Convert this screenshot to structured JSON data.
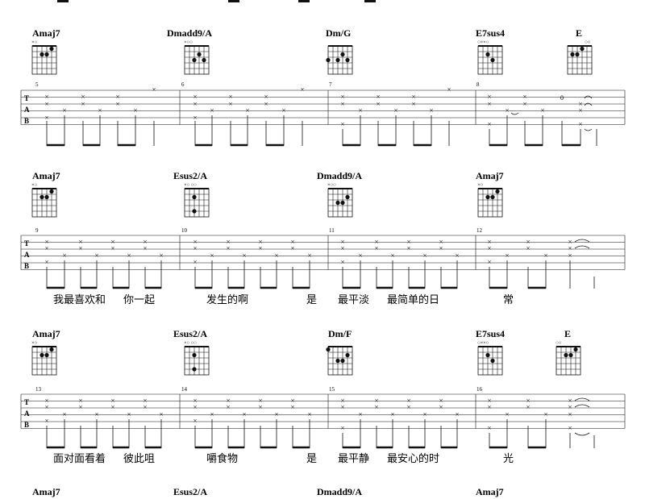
{
  "systems": [
    {
      "chords": [
        {
          "name": "Amaj7",
          "open": "×○",
          "dots": [
            [
              2,
              2
            ],
            [
              3,
              2
            ],
            [
              4,
              1
            ]
          ]
        },
        {
          "name": "Dmadd9/A",
          "open": "×○○",
          "dots": [
            [
              3,
              2
            ],
            [
              4,
              3
            ],
            [
              5,
              3
            ]
          ]
        },
        {
          "name": "Dm/G",
          "open": "",
          "dots": [
            [
              1,
              3
            ],
            [
              3,
              3
            ],
            [
              4,
              2
            ],
            [
              5,
              3
            ]
          ]
        },
        {
          "name": "E7sus4",
          "open": "○××○",
          "dots": [
            [
              2,
              2
            ],
            [
              3,
              3
            ]
          ]
        },
        {
          "name": "E",
          "open": "○○",
          "dots": [
            [
              2,
              2
            ],
            [
              3,
              2
            ],
            [
              4,
              1
            ]
          ]
        }
      ],
      "measure_numbers": [
        "5",
        "6",
        "7",
        "8"
      ],
      "tab_extra": [
        "0"
      ],
      "lyrics": []
    },
    {
      "chords": [
        {
          "name": "Amaj7",
          "open": "×○",
          "dots": [
            [
              2,
              2
            ],
            [
              3,
              2
            ],
            [
              4,
              1
            ]
          ]
        },
        {
          "name": "Esus2/A",
          "open": "×○ ○○",
          "dots": [
            [
              2,
              2
            ],
            [
              3,
              4
            ]
          ]
        },
        {
          "name": "Dmadd9/A",
          "open": "×○○",
          "dots": [
            [
              3,
              2
            ],
            [
              4,
              3
            ],
            [
              5,
              3
            ]
          ]
        },
        {
          "name": "Amaj7",
          "open": "×○",
          "dots": [
            [
              2,
              2
            ],
            [
              3,
              2
            ],
            [
              4,
              1
            ]
          ]
        }
      ],
      "measure_numbers": [
        "9",
        "10",
        "11",
        "12"
      ],
      "lyrics": [
        "我最喜欢和",
        "你一起",
        "发生的啊",
        "是",
        "最平淡",
        "最简单的日",
        "常"
      ]
    },
    {
      "chords": [
        {
          "name": "Amaj7",
          "open": "×○",
          "dots": [
            [
              2,
              2
            ],
            [
              3,
              2
            ],
            [
              4,
              1
            ]
          ]
        },
        {
          "name": "Esus2/A",
          "open": "×○ ○○",
          "dots": [
            [
              2,
              2
            ],
            [
              3,
              4
            ]
          ]
        },
        {
          "name": "Dm/F",
          "open": "",
          "dots": [
            [
              1,
              1
            ],
            [
              3,
              2
            ],
            [
              4,
              3
            ],
            [
              5,
              3
            ]
          ]
        },
        {
          "name": "E7sus4",
          "open": "○××○",
          "dots": [
            [
              2,
              2
            ],
            [
              3,
              3
            ]
          ]
        },
        {
          "name": "E",
          "open": "○○",
          "dots": [
            [
              2,
              2
            ],
            [
              3,
              2
            ],
            [
              4,
              1
            ]
          ]
        }
      ],
      "measure_numbers": [
        "13",
        "14",
        "15",
        "16"
      ],
      "lyrics": [
        "面对面看着",
        "彼此咀",
        "嚼食物",
        "是",
        "最平静",
        "最安心的时",
        "光"
      ]
    },
    {
      "chords": [
        {
          "name": "Amaj7"
        },
        {
          "name": "Esus2/A"
        },
        {
          "name": "Dmadd9/A"
        },
        {
          "name": "Amaj7"
        }
      ]
    }
  ],
  "tab_clef": [
    "T",
    "A",
    "B"
  ]
}
